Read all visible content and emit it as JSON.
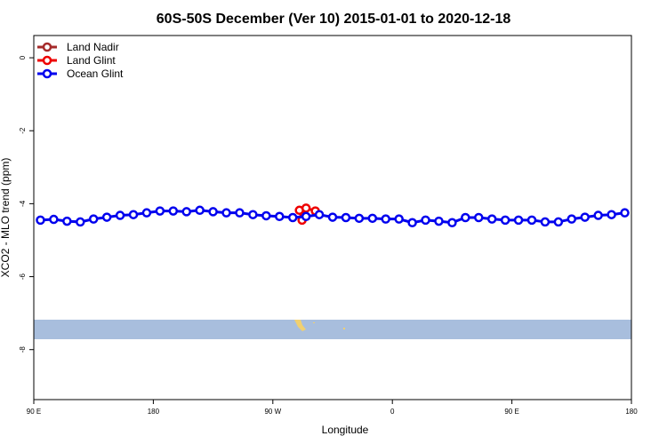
{
  "chart_data": {
    "type": "line",
    "title": "60S-50S December (Ver 10)   2015-01-01 to 2020-12-18",
    "x_label": "Longitude",
    "y_label": "XCO2 - MLO trend (ppm)",
    "xlim": [
      90,
      540
    ],
    "ylim": [
      -9.37,
      0.61
    ],
    "xticks": [
      {
        "value": 90,
        "label": "90 E"
      },
      {
        "value": 180,
        "label": "180"
      },
      {
        "value": 270,
        "label": "90 W"
      },
      {
        "value": 360,
        "label": "0"
      },
      {
        "value": 450,
        "label": "90 E"
      },
      {
        "value": 540,
        "label": "180"
      }
    ],
    "yticks": [
      0,
      -2,
      -4,
      -6,
      -8
    ],
    "legend": "top-left",
    "series": [
      {
        "name": "Land Nadir",
        "color": "#a52a2a",
        "x": [],
        "values": []
      },
      {
        "name": "Land Glint",
        "color": "#ee0000",
        "x": [
          290,
          292,
          295,
          302
        ],
        "values": [
          -4.18,
          -4.45,
          -4.12,
          -4.2
        ]
      },
      {
        "name": "Ocean Glint",
        "color": "#0000ee",
        "x": [
          95,
          105,
          115,
          125,
          135,
          145,
          155,
          165,
          175,
          185,
          195,
          205,
          215,
          225,
          235,
          245,
          255,
          265,
          275,
          285,
          295,
          305,
          315,
          325,
          335,
          345,
          355,
          365,
          375,
          385,
          395,
          405,
          415,
          425,
          435,
          445,
          455,
          465,
          475,
          485,
          495,
          505,
          515,
          525,
          535
        ],
        "values": [
          -4.45,
          -4.43,
          -4.48,
          -4.5,
          -4.42,
          -4.37,
          -4.32,
          -4.3,
          -4.25,
          -4.2,
          -4.2,
          -4.22,
          -4.18,
          -4.22,
          -4.25,
          -4.25,
          -4.3,
          -4.33,
          -4.35,
          -4.38,
          -4.35,
          -4.3,
          -4.37,
          -4.38,
          -4.4,
          -4.4,
          -4.42,
          -4.42,
          -4.52,
          -4.45,
          -4.48,
          -4.52,
          -4.38,
          -4.38,
          -4.42,
          -4.45,
          -4.45,
          -4.45,
          -4.5,
          -4.5,
          -4.42,
          -4.37,
          -4.32,
          -4.3,
          -4.25
        ]
      }
    ]
  }
}
